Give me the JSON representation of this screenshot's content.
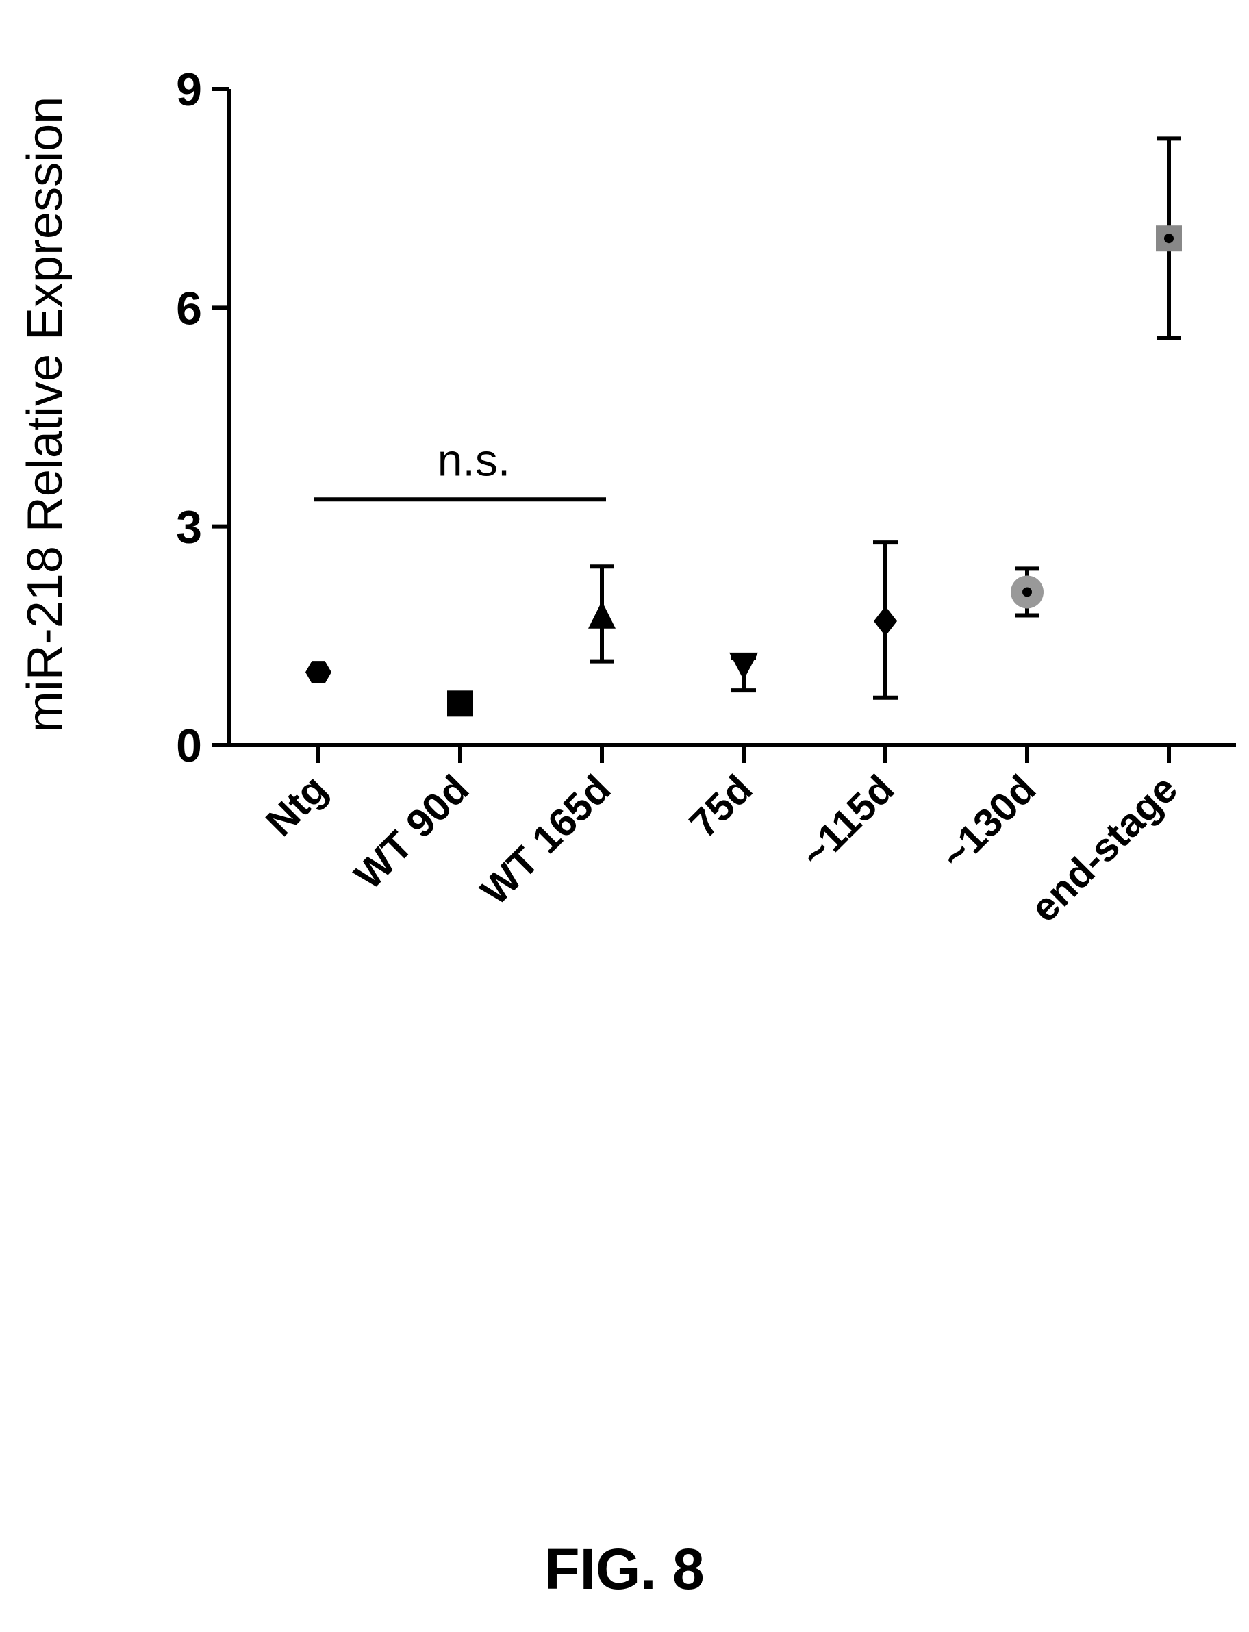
{
  "chart_data": {
    "type": "scatter",
    "ylabel": "miR-218 Relative Expression",
    "xlabel": "",
    "ylim": [
      0,
      9
    ],
    "yticks": [
      0,
      3,
      6,
      9
    ],
    "grid": false,
    "categories": [
      "Ntg",
      "WT 90d",
      "WT 165d",
      "75d",
      "~115d",
      "~130d",
      "end-stage"
    ],
    "points": [
      {
        "category": "Ntg",
        "mean": 1.0,
        "err_low": 1.0,
        "err_high": 1.0,
        "marker": "hexagon",
        "color": "#000000"
      },
      {
        "category": "WT 90d",
        "mean": 0.57,
        "err_low": 0.57,
        "err_high": 0.57,
        "marker": "square",
        "color": "#000000"
      },
      {
        "category": "WT 165d",
        "mean": 1.75,
        "err_low": 1.15,
        "err_high": 2.45,
        "marker": "triangle-up",
        "color": "#000000"
      },
      {
        "category": "75d",
        "mean": 1.1,
        "err_low": 0.75,
        "err_high": 1.2,
        "marker": "triangle-down",
        "color": "#000000"
      },
      {
        "category": "~115d",
        "mean": 1.7,
        "err_low": 0.65,
        "err_high": 2.78,
        "marker": "diamond",
        "color": "#000000"
      },
      {
        "category": "~130d",
        "mean": 2.1,
        "err_low": 1.78,
        "err_high": 2.42,
        "marker": "circle",
        "color": "#999999"
      },
      {
        "category": "end-stage",
        "mean": 6.95,
        "err_low": 5.58,
        "err_high": 8.32,
        "marker": "square",
        "color": "#888888"
      }
    ],
    "annotations": [
      {
        "text": "n.s.",
        "from_category": "Ntg",
        "to_category": "WT 165d",
        "y": 3.37
      }
    ]
  },
  "figure_caption": "FIG. 8"
}
